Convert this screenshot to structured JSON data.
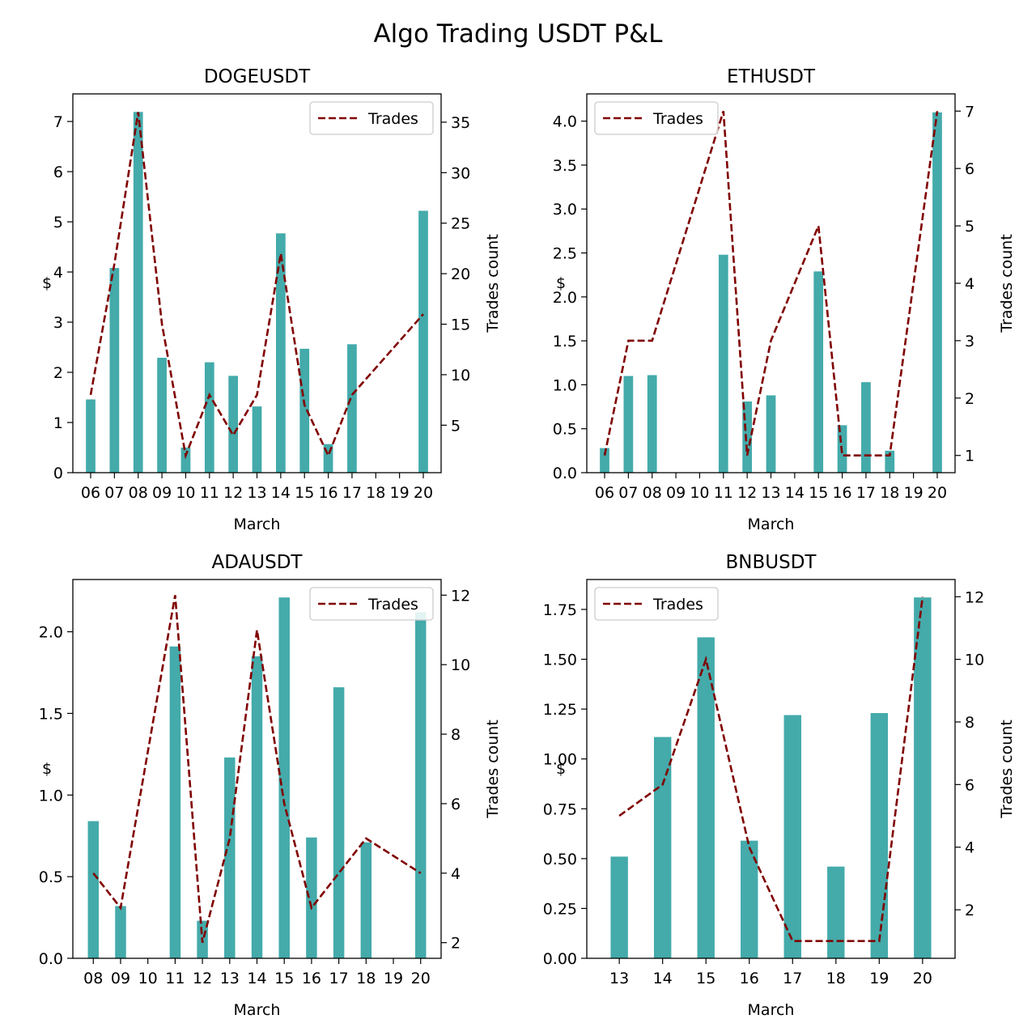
{
  "title": "Algo Trading USDT P&L",
  "colors": {
    "bar": "#44aaaa",
    "line": "#800000",
    "axis": "#000000"
  },
  "chart_data": [
    {
      "type": "bar",
      "title": "DOGEUSDT",
      "xlabel": "March",
      "ylabel": "$",
      "y2label": "Trades count",
      "legend": {
        "label": "Trades",
        "position": "top-right"
      },
      "categories": [
        "06",
        "07",
        "08",
        "09",
        "10",
        "11",
        "12",
        "13",
        "14",
        "15",
        "16",
        "17",
        "18",
        "19",
        "20"
      ],
      "values": [
        1.46,
        4.08,
        7.19,
        2.29,
        0.5,
        2.2,
        1.93,
        1.32,
        4.77,
        2.47,
        0.57,
        2.56,
        null,
        null,
        5.22
      ],
      "trades": [
        8,
        21,
        36,
        15,
        2,
        8,
        4,
        8,
        22,
        7,
        2,
        8,
        null,
        null,
        16
      ],
      "ylim": [
        0,
        7.55
      ],
      "yticks": [
        0,
        1,
        2,
        3,
        4,
        5,
        6,
        7
      ],
      "y2lim": [
        0.3,
        37.8
      ],
      "y2ticks": [
        5,
        10,
        15,
        20,
        25,
        30,
        35
      ]
    },
    {
      "type": "bar",
      "title": "ETHUSDT",
      "xlabel": "March",
      "ylabel": "$",
      "y2label": "Trades count",
      "legend": {
        "label": "Trades",
        "position": "top-left"
      },
      "categories": [
        "06",
        "07",
        "08",
        "09",
        "10",
        "11",
        "12",
        "13",
        "14",
        "15",
        "16",
        "17",
        "18",
        "19",
        "20"
      ],
      "values": [
        0.28,
        1.1,
        1.11,
        null,
        null,
        2.48,
        0.81,
        0.88,
        null,
        2.29,
        0.54,
        1.03,
        0.25,
        null,
        4.1
      ],
      "trades": [
        1,
        3,
        3,
        null,
        null,
        7,
        1,
        3,
        null,
        5,
        1,
        1,
        1,
        null,
        7
      ],
      "ylim": [
        0,
        4.31
      ],
      "yticks": [
        "0.0",
        "0.5",
        "1.0",
        "1.5",
        "2.0",
        "2.5",
        "3.0",
        "3.5",
        "4.0"
      ],
      "y2lim": [
        0.7,
        7.3
      ],
      "y2ticks": [
        1,
        2,
        3,
        4,
        5,
        6,
        7
      ]
    },
    {
      "type": "bar",
      "title": "ADAUSDT",
      "xlabel": "March",
      "ylabel": "$",
      "y2label": "Trades count",
      "legend": {
        "label": "Trades",
        "position": "top-right"
      },
      "categories": [
        "08",
        "09",
        "10",
        "11",
        "12",
        "13",
        "14",
        "15",
        "16",
        "17",
        "18",
        "19",
        "20"
      ],
      "values": [
        0.84,
        0.32,
        null,
        1.91,
        0.23,
        1.23,
        1.85,
        2.21,
        0.74,
        1.66,
        0.71,
        null,
        2.12
      ],
      "trades": [
        4,
        3,
        null,
        12,
        2,
        5,
        11,
        6,
        3,
        4,
        5,
        null,
        4
      ],
      "ylim": [
        0,
        2.32
      ],
      "yticks": [
        "0.0",
        "0.5",
        "1.0",
        "1.5",
        "2.0"
      ],
      "y2lim": [
        1.55,
        12.45
      ],
      "y2ticks": [
        2,
        4,
        6,
        8,
        10,
        12
      ]
    },
    {
      "type": "bar",
      "title": "BNBUSDT",
      "xlabel": "March",
      "ylabel": "$",
      "y2label": "Trades count",
      "legend": {
        "label": "Trades",
        "position": "top-left"
      },
      "categories": [
        "13",
        "14",
        "15",
        "16",
        "17",
        "18",
        "19",
        "20"
      ],
      "values": [
        0.51,
        1.11,
        1.61,
        0.59,
        1.22,
        0.46,
        1.23,
        1.81
      ],
      "trades": [
        5,
        6,
        10,
        4,
        1,
        1,
        1,
        12
      ],
      "ylim": [
        0,
        1.9
      ],
      "yticks": [
        "0.00",
        "0.25",
        "0.50",
        "0.75",
        "1.00",
        "1.25",
        "1.50",
        "1.75"
      ],
      "y2lim": [
        0.45,
        12.55
      ],
      "y2ticks": [
        2,
        4,
        6,
        8,
        10,
        12
      ]
    }
  ]
}
